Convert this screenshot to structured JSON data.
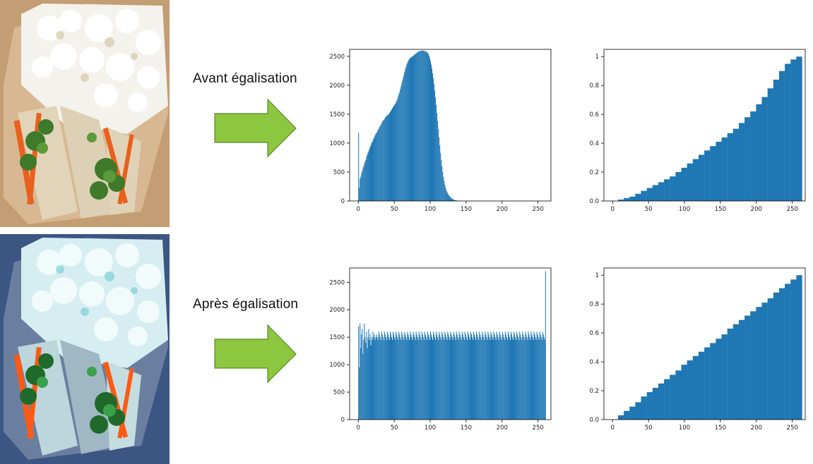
{
  "labels": {
    "before": "Avant égalisation",
    "after": "Après égalisation"
  },
  "colors": {
    "bar": "#1f77b4",
    "arrow_fill": "#8dc63f",
    "arrow_stroke": "#5a8a2a"
  },
  "chart_data": [
    {
      "id": "hist-before",
      "type": "bar",
      "title": "",
      "xlabel": "",
      "ylabel": "",
      "xlim": [
        -12,
        268
      ],
      "ylim": [
        0,
        2620
      ],
      "xticks": [
        0,
        50,
        100,
        150,
        200,
        250
      ],
      "yticks": [
        0,
        500,
        1000,
        1500,
        2000,
        2500
      ],
      "x_start": 0,
      "x_step": 1,
      "values": [
        1180,
        230,
        380,
        420,
        480,
        510,
        560,
        600,
        640,
        680,
        710,
        760,
        800,
        830,
        860,
        900,
        930,
        960,
        1000,
        1020,
        1050,
        1080,
        1110,
        1140,
        1160,
        1180,
        1200,
        1230,
        1250,
        1280,
        1300,
        1320,
        1340,
        1370,
        1390,
        1400,
        1420,
        1440,
        1460,
        1470,
        1480,
        1490,
        1500,
        1520,
        1540,
        1560,
        1580,
        1600,
        1620,
        1640,
        1660,
        1680,
        1700,
        1730,
        1760,
        1800,
        1840,
        1880,
        1930,
        1980,
        2030,
        2080,
        2130,
        2180,
        2230,
        2280,
        2320,
        2360,
        2390,
        2420,
        2440,
        2460,
        2470,
        2480,
        2490,
        2500,
        2510,
        2520,
        2530,
        2540,
        2550,
        2560,
        2570,
        2580,
        2585,
        2590,
        2595,
        2598,
        2600,
        2600,
        2598,
        2594,
        2590,
        2585,
        2580,
        2570,
        2560,
        2540,
        2510,
        2470,
        2420,
        2360,
        2290,
        2210,
        2120,
        2020,
        1910,
        1790,
        1660,
        1520,
        1380,
        1240,
        1100,
        960,
        830,
        710,
        600,
        500,
        410,
        340,
        280,
        230,
        190,
        160,
        130,
        110,
        90,
        75,
        60,
        50,
        40,
        30,
        25,
        20,
        15,
        12,
        10,
        8,
        6,
        5,
        4,
        3,
        2,
        2,
        1,
        1,
        1,
        1,
        0,
        0,
        0,
        0,
        0,
        0,
        0,
        0,
        0,
        0,
        0,
        0,
        0,
        0,
        0,
        0,
        0,
        0,
        0,
        0,
        0,
        0,
        0,
        0,
        0,
        0,
        0,
        0,
        0,
        0,
        0,
        0,
        0,
        0,
        0,
        0,
        0,
        0,
        0,
        0,
        0,
        0,
        0,
        0,
        0,
        0,
        0,
        0,
        0,
        0,
        0,
        0,
        0,
        0,
        0,
        0,
        0,
        0,
        0,
        0,
        0,
        0,
        0,
        0,
        0,
        0,
        0,
        0,
        0,
        0,
        0,
        0,
        0,
        0,
        0,
        0,
        0,
        0,
        0,
        0,
        0,
        0,
        0,
        0,
        0,
        0,
        0,
        0,
        0,
        0,
        0,
        0,
        0,
        0,
        0,
        0,
        0,
        0,
        0,
        0,
        0,
        0,
        0,
        0,
        0,
        0,
        0,
        0,
        0,
        0,
        0,
        0,
        0,
        0,
        0,
        0,
        0,
        0,
        0,
        0,
        0,
        0,
        0,
        0,
        0
      ]
    },
    {
      "id": "cdf-before",
      "type": "bar",
      "title": "",
      "xlabel": "",
      "ylabel": "",
      "xlim": [
        -12,
        268
      ],
      "ylim": [
        0,
        1.05
      ],
      "xticks": [
        0,
        50,
        100,
        150,
        200,
        250
      ],
      "yticks": [
        0.0,
        0.2,
        0.4,
        0.6,
        0.8,
        1.0
      ],
      "x_start": 0,
      "x_step": 8,
      "values": [
        0.0,
        0.01,
        0.02,
        0.03,
        0.05,
        0.07,
        0.09,
        0.11,
        0.13,
        0.15,
        0.17,
        0.2,
        0.23,
        0.26,
        0.29,
        0.32,
        0.35,
        0.38,
        0.41,
        0.44,
        0.47,
        0.5,
        0.54,
        0.58,
        0.62,
        0.67,
        0.72,
        0.78,
        0.84,
        0.9,
        0.95,
        0.98,
        1.0
      ]
    },
    {
      "id": "hist-after",
      "type": "bar",
      "title": "",
      "xlabel": "",
      "ylabel": "",
      "xlim": [
        -12,
        268
      ],
      "ylim": [
        0,
        2760
      ],
      "xticks": [
        0,
        50,
        100,
        150,
        200,
        250
      ],
      "yticks": [
        0,
        500,
        1000,
        1500,
        2000,
        2500
      ],
      "x_start": 0,
      "x_step": 1,
      "values": [
        1700,
        950,
        1750,
        1300,
        1550,
        1650,
        1200,
        1450,
        1750,
        1500,
        1400,
        1600,
        1300,
        1500,
        1650,
        1450,
        1550,
        1350,
        1500,
        1450,
        1600,
        1500,
        1550,
        1450,
        1500,
        1550,
        1500,
        1450,
        1600,
        1550,
        1500,
        1450,
        1600,
        1550,
        1500,
        1450,
        1600,
        1550,
        1500,
        1450,
        1600,
        1550,
        1500,
        1450,
        1600,
        1550,
        1500,
        1450,
        1600,
        1550,
        1500,
        1450,
        1600,
        1550,
        1500,
        1450,
        1600,
        1550,
        1500,
        1450,
        1600,
        1550,
        1500,
        1450,
        1600,
        1550,
        1500,
        1450,
        1600,
        1550,
        1500,
        1450,
        1600,
        1550,
        1500,
        1450,
        1600,
        1550,
        1500,
        1450,
        1600,
        1550,
        1500,
        1450,
        1600,
        1550,
        1500,
        1450,
        1600,
        1550,
        1500,
        1450,
        1600,
        1550,
        1500,
        1450,
        1600,
        1550,
        1500,
        1450,
        1600,
        1550,
        1500,
        1450,
        1600,
        1550,
        1500,
        1450,
        1600,
        1550,
        1500,
        1450,
        1600,
        1550,
        1500,
        1450,
        1600,
        1550,
        1500,
        1450,
        1600,
        1550,
        1500,
        1450,
        1600,
        1550,
        1500,
        1450,
        1600,
        1550,
        1500,
        1450,
        1600,
        1550,
        1500,
        1450,
        1600,
        1550,
        1500,
        1450,
        1600,
        1550,
        1500,
        1450,
        1600,
        1550,
        1500,
        1450,
        1600,
        1550,
        1500,
        1450,
        1600,
        1550,
        1500,
        1450,
        1600,
        1550,
        1500,
        1450,
        1600,
        1550,
        1500,
        1450,
        1600,
        1550,
        1500,
        1450,
        1600,
        1550,
        1500,
        1450,
        1600,
        1550,
        1500,
        1450,
        1600,
        1550,
        1500,
        1450,
        1600,
        1550,
        1500,
        1450,
        1600,
        1550,
        1500,
        1450,
        1600,
        1550,
        1500,
        1450,
        1600,
        1550,
        1500,
        1450,
        1600,
        1550,
        1500,
        1450,
        1600,
        1550,
        1500,
        1450,
        1600,
        1550,
        1500,
        1450,
        1600,
        1550,
        1500,
        1450,
        1600,
        1550,
        1500,
        1450,
        1600,
        1550,
        1500,
        1450,
        1600,
        1550,
        1500,
        1450,
        1600,
        1550,
        1500,
        1450,
        1600,
        1550,
        1500,
        1450,
        1600,
        1550,
        1500,
        1450,
        1600,
        1550,
        1500,
        1450,
        1600,
        1550,
        1500,
        1450,
        1600,
        1550,
        1500,
        1450,
        1600,
        1550,
        1500,
        1450,
        1600,
        1550,
        1500,
        1450,
        1600,
        1550,
        1500,
        1450,
        2700
      ]
    },
    {
      "id": "cdf-after",
      "type": "bar",
      "title": "",
      "xlabel": "",
      "ylabel": "",
      "xlim": [
        -12,
        268
      ],
      "ylim": [
        0,
        1.05
      ],
      "xticks": [
        0,
        50,
        100,
        150,
        200,
        250
      ],
      "yticks": [
        0.0,
        0.2,
        0.4,
        0.6,
        0.8,
        1.0
      ],
      "x_start": 0,
      "x_step": 8,
      "values": [
        0.0,
        0.03,
        0.06,
        0.09,
        0.12,
        0.16,
        0.19,
        0.22,
        0.25,
        0.28,
        0.31,
        0.34,
        0.38,
        0.41,
        0.44,
        0.47,
        0.5,
        0.53,
        0.56,
        0.59,
        0.63,
        0.66,
        0.69,
        0.72,
        0.75,
        0.78,
        0.81,
        0.84,
        0.88,
        0.91,
        0.94,
        0.97,
        1.0
      ]
    }
  ]
}
